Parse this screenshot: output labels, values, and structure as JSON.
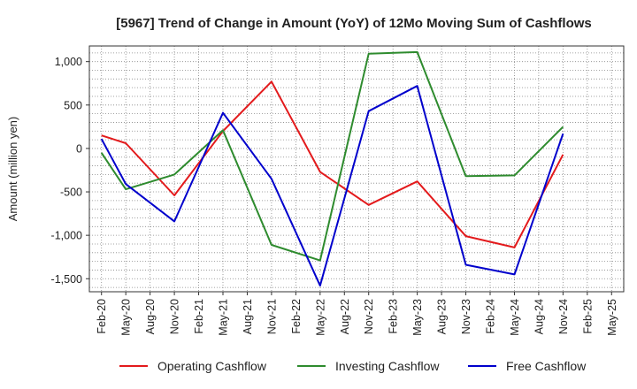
{
  "chart_data": {
    "type": "line",
    "title": "[5967]  Trend of Change in Amount (YoY) of 12Mo Moving Sum of Cashflows",
    "xlabel": "",
    "ylabel": "Amount (million yen)",
    "ylim": [
      -1650,
      1180
    ],
    "yticks": [
      1000,
      500,
      0,
      -500,
      -1000,
      -1500
    ],
    "ytick_labels": [
      "1,000",
      "500",
      "0",
      "-500",
      "-1,000",
      "-1,500"
    ],
    "categories": [
      "Feb-20",
      "May-20",
      "Aug-20",
      "Nov-20",
      "Feb-21",
      "May-21",
      "Aug-21",
      "Nov-21",
      "Feb-22",
      "May-22",
      "Aug-22",
      "Nov-22",
      "Feb-23",
      "May-23",
      "Aug-23",
      "Nov-23",
      "Feb-24",
      "May-24",
      "Aug-24",
      "Nov-24",
      "Feb-25",
      "May-25"
    ],
    "grid": true,
    "legend_position": "bottom",
    "series": [
      {
        "name": "Operating Cashflow",
        "color": "#e31a1c",
        "values": [
          150,
          60,
          null,
          -540,
          null,
          200,
          null,
          770,
          null,
          -270,
          null,
          -650,
          null,
          -380,
          null,
          -1010,
          null,
          -1140,
          null,
          -70,
          null,
          null
        ]
      },
      {
        "name": "Investing Cashflow",
        "color": "#2e8b2e",
        "values": [
          -50,
          -470,
          null,
          -300,
          null,
          210,
          null,
          -1110,
          null,
          -1290,
          null,
          1090,
          null,
          1110,
          null,
          -320,
          null,
          -310,
          null,
          250,
          null,
          null
        ]
      },
      {
        "name": "Free Cashflow",
        "color": "#0000cc",
        "values": [
          110,
          -410,
          null,
          -840,
          null,
          410,
          null,
          -350,
          null,
          -1580,
          null,
          430,
          null,
          720,
          null,
          -1340,
          null,
          -1450,
          null,
          170,
          null,
          null
        ]
      }
    ]
  }
}
